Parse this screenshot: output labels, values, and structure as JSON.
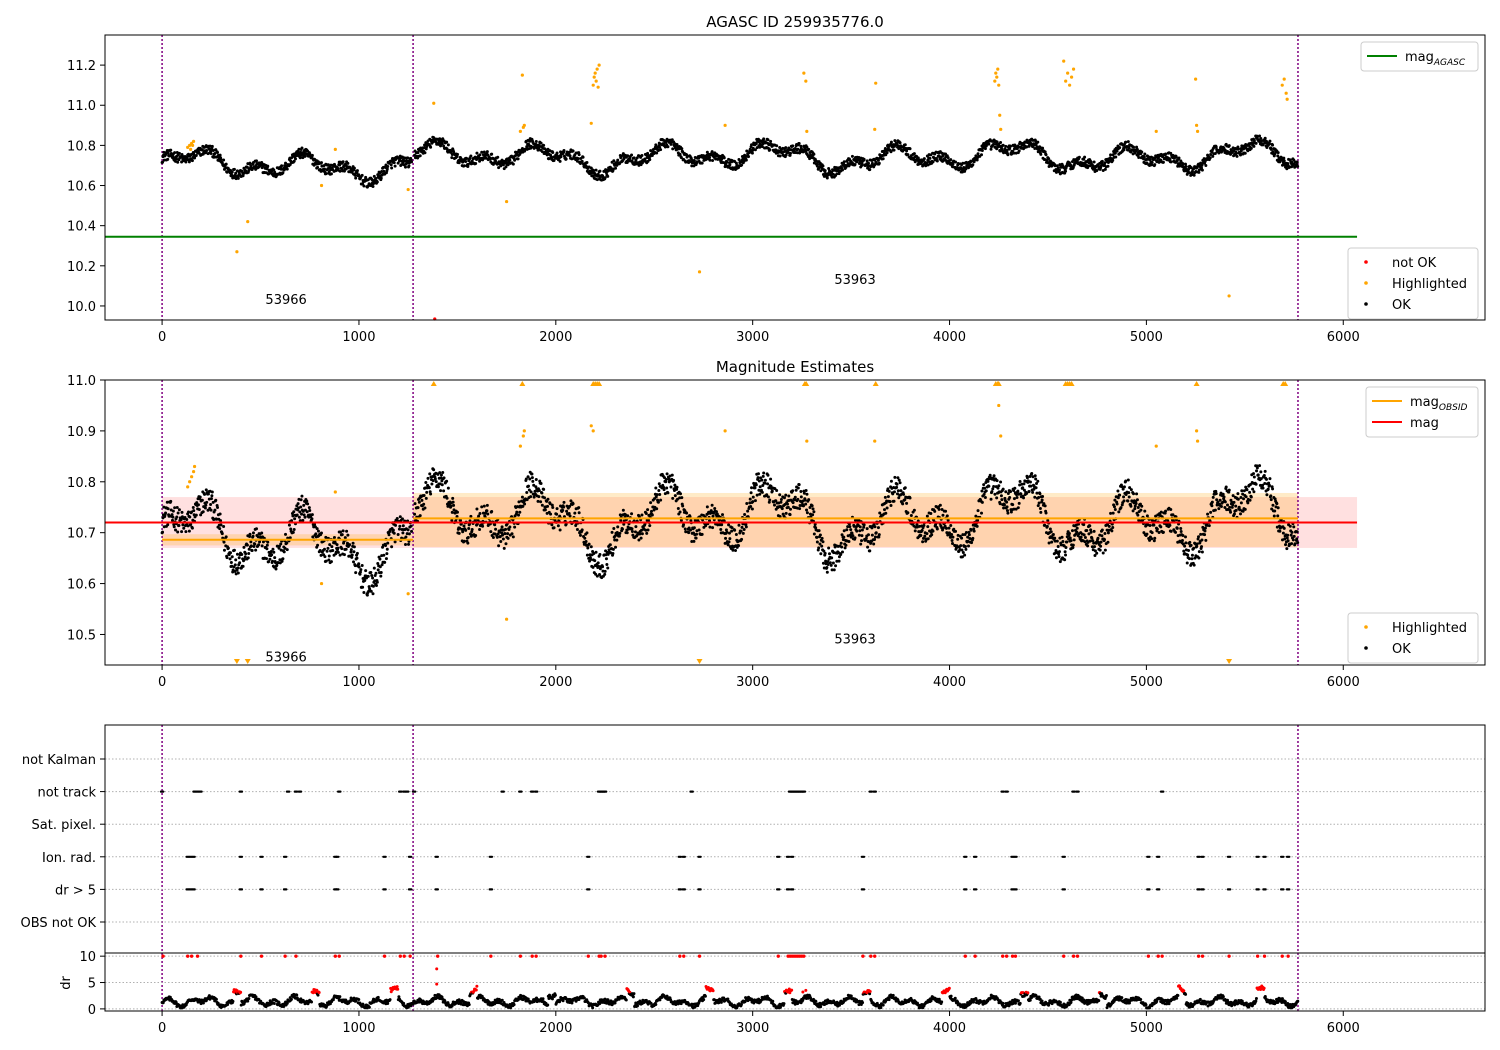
{
  "figure": {
    "title": "AGASC ID 259935776.0"
  },
  "chart_data": [
    {
      "type": "scatter",
      "panel": "top",
      "title": "AGASC ID 259935776.0",
      "xlim": [
        -290,
        6720
      ],
      "ylim": [
        9.93,
        11.35
      ],
      "xticks": [
        0,
        1000,
        2000,
        3000,
        4000,
        5000,
        6000
      ],
      "yticks": [
        10.0,
        10.2,
        10.4,
        10.6,
        10.8,
        11.0,
        11.2
      ],
      "obsid_boundaries": [
        0,
        1275,
        5770
      ],
      "obsid_labels": [
        {
          "text": "53966",
          "x": 630,
          "y": 10.0
        },
        {
          "text": "53963",
          "x": 3520,
          "y": 10.1
        }
      ],
      "mag_agasc": {
        "value": 10.345,
        "x_range": [
          0,
          6070
        ]
      },
      "legend_upper": {
        "position": "upper right",
        "entries": [
          {
            "label": "mag",
            "sub": "AGASC",
            "color": "#008000"
          }
        ]
      },
      "legend_lower": {
        "position": "lower right",
        "entries": [
          {
            "label": "not OK",
            "color": "#ff0000"
          },
          {
            "label": "Highlighted",
            "color": "#ffa500"
          },
          {
            "label": "OK",
            "color": "#000000"
          }
        ]
      },
      "highlighted_points": [
        [
          130,
          10.79
        ],
        [
          140,
          10.8
        ],
        [
          150,
          10.81
        ],
        [
          160,
          10.82
        ],
        [
          145,
          10.78
        ],
        [
          155,
          10.8
        ],
        [
          380,
          10.27
        ],
        [
          435,
          10.42
        ],
        [
          810,
          10.6
        ],
        [
          880,
          10.78
        ],
        [
          1250,
          10.58
        ],
        [
          1380,
          11.01
        ],
        [
          1750,
          10.52
        ],
        [
          1820,
          10.87
        ],
        [
          1830,
          11.15
        ],
        [
          1835,
          10.89
        ],
        [
          1840,
          10.9
        ],
        [
          2180,
          10.91
        ],
        [
          2190,
          11.1
        ],
        [
          2195,
          11.14
        ],
        [
          2200,
          11.16
        ],
        [
          2205,
          11.12
        ],
        [
          2210,
          11.18
        ],
        [
          2215,
          11.09
        ],
        [
          2220,
          11.2
        ],
        [
          2730,
          10.17
        ],
        [
          2860,
          10.9
        ],
        [
          3260,
          11.16
        ],
        [
          3270,
          11.12
        ],
        [
          3275,
          10.87
        ],
        [
          3620,
          10.88
        ],
        [
          3625,
          11.11
        ],
        [
          4230,
          11.12
        ],
        [
          4235,
          11.16
        ],
        [
          4240,
          11.14
        ],
        [
          4245,
          11.18
        ],
        [
          4250,
          11.1
        ],
        [
          4255,
          10.95
        ],
        [
          4260,
          10.88
        ],
        [
          4580,
          11.22
        ],
        [
          4590,
          11.12
        ],
        [
          4600,
          11.16
        ],
        [
          4610,
          11.1
        ],
        [
          4620,
          11.14
        ],
        [
          4630,
          11.18
        ],
        [
          5050,
          10.87
        ],
        [
          5250,
          11.13
        ],
        [
          5255,
          10.9
        ],
        [
          5260,
          10.87
        ],
        [
          5420,
          10.05
        ],
        [
          5690,
          11.1
        ],
        [
          5700,
          11.13
        ],
        [
          5710,
          11.06
        ],
        [
          5715,
          11.03
        ]
      ],
      "not_ok_points": [
        [
          1385,
          9.92
        ]
      ]
    },
    {
      "type": "scatter",
      "panel": "middle",
      "title": "Magnitude Estimates",
      "xlim": [
        -290,
        6720
      ],
      "ylim": [
        10.44,
        11.0
      ],
      "xticks": [
        0,
        1000,
        2000,
        3000,
        4000,
        5000,
        6000
      ],
      "yticks": [
        10.5,
        10.6,
        10.7,
        10.8,
        10.9,
        11.0
      ],
      "obsid_boundaries": [
        0,
        1275,
        5770
      ],
      "obsid_labels": [
        {
          "text": "53966",
          "x": 630,
          "y": 10.455
        },
        {
          "text": "53963",
          "x": 3520,
          "y": 10.49
        }
      ],
      "mag": {
        "value": 10.72,
        "band": [
          10.67,
          10.77
        ],
        "x_range": [
          0,
          6070
        ]
      },
      "mag_obsid": [
        {
          "obsid": "53966",
          "value": 10.686,
          "band": [
            10.675,
            10.697
          ],
          "x_range": [
            0,
            1275
          ]
        },
        {
          "obsid": "53963",
          "value": 10.728,
          "band": [
            10.672,
            10.778
          ],
          "x_range": [
            1275,
            5770
          ]
        }
      ],
      "legend_upper": {
        "position": "upper right",
        "entries": [
          {
            "label": "mag",
            "sub": "OBSID",
            "color": "#ffa500"
          },
          {
            "label": "mag",
            "sub": "",
            "color": "#ff0000"
          }
        ]
      },
      "legend_lower": {
        "position": "lower right",
        "entries": [
          {
            "label": "Highlighted",
            "color": "#ffa500"
          },
          {
            "label": "OK",
            "color": "#000000"
          }
        ]
      },
      "highlighted_points": [
        [
          130,
          10.79
        ],
        [
          140,
          10.8
        ],
        [
          150,
          10.81
        ],
        [
          160,
          10.82
        ],
        [
          165,
          10.83
        ],
        [
          810,
          10.6
        ],
        [
          880,
          10.78
        ],
        [
          1250,
          10.58
        ],
        [
          1750,
          10.53
        ],
        [
          1820,
          10.87
        ],
        [
          1835,
          10.89
        ],
        [
          1840,
          10.9
        ],
        [
          2180,
          10.91
        ],
        [
          2190,
          10.9
        ],
        [
          2860,
          10.9
        ],
        [
          3275,
          10.88
        ],
        [
          3620,
          10.88
        ],
        [
          4250,
          10.95
        ],
        [
          4260,
          10.89
        ],
        [
          5050,
          10.87
        ],
        [
          5255,
          10.9
        ],
        [
          5260,
          10.88
        ]
      ],
      "clipped_high": [
        1380,
        1830,
        2190,
        2200,
        2210,
        2220,
        3265,
        3272,
        3625,
        4235,
        4245,
        4250,
        4590,
        4600,
        4610,
        4620,
        5255,
        5695,
        5705
      ],
      "clipped_low": [
        380,
        435,
        2730,
        5420
      ]
    },
    {
      "type": "scatter",
      "panel": "flags",
      "xlim": [
        -290,
        6720
      ],
      "obsid_boundaries": [
        0,
        1275,
        5770
      ],
      "categories": [
        "not Kalman",
        "not track",
        "Sat. pixel.",
        "Ion. rad.",
        "dr > 5",
        "OBS not OK"
      ],
      "flags": {
        "not track": [
          0,
          165,
          180,
          195,
          400,
          640,
          680,
          700,
          900,
          1210,
          1230,
          1245,
          1280,
          1730,
          1820,
          1880,
          1900,
          2220,
          2230,
          2240,
          2250,
          2690,
          3190,
          3200,
          3210,
          3220,
          3230,
          3240,
          3250,
          3260,
          3600,
          3620,
          4270,
          4290,
          4630,
          4650,
          5080
        ],
        "Ion. rad.": [
          130,
          145,
          160,
          400,
          505,
          625,
          880,
          890,
          1130,
          1260,
          1395,
          1670,
          2165,
          2630,
          2650,
          2730,
          3130,
          3180,
          3200,
          3560,
          4080,
          4130,
          4320,
          4335,
          4580,
          5010,
          5060,
          5265,
          5285,
          5420,
          5565,
          5600,
          5690,
          5720
        ],
        "dr > 5": [
          130,
          145,
          160,
          400,
          505,
          625,
          880,
          890,
          1130,
          1260,
          1395,
          1670,
          2165,
          2630,
          2650,
          2730,
          3130,
          3180,
          3200,
          3560,
          4080,
          4130,
          4320,
          4335,
          4580,
          5010,
          5060,
          5265,
          5285,
          5420,
          5565,
          5600,
          5690,
          5720
        ]
      }
    },
    {
      "type": "scatter",
      "panel": "dr",
      "ylabel": "dr",
      "xlim": [
        -290,
        6720
      ],
      "ylim": [
        -0.4,
        10.6
      ],
      "xticks": [
        0,
        1000,
        2000,
        3000,
        4000,
        5000,
        6000
      ],
      "yticks": [
        0,
        5,
        10
      ],
      "obsid_boundaries": [
        0,
        1275,
        5770
      ],
      "saturated_red": [
        5,
        130,
        150,
        180,
        400,
        505,
        625,
        680,
        880,
        900,
        1130,
        1210,
        1230,
        1260,
        1400,
        1670,
        1820,
        1880,
        1900,
        2165,
        2220,
        2230,
        2250,
        2630,
        2650,
        2730,
        3130,
        3180,
        3190,
        3200,
        3210,
        3220,
        3230,
        3240,
        3250,
        3260,
        3560,
        3600,
        3620,
        4080,
        4130,
        4270,
        4290,
        4320,
        4335,
        4580,
        4630,
        4650,
        5010,
        5060,
        5080,
        5265,
        5285,
        5420,
        5565,
        5600,
        5690,
        5720
      ],
      "red_points": [
        [
          1395,
          7.6
        ],
        [
          1395,
          4.7
        ],
        [
          3255,
          3.2
        ],
        [
          3270,
          3.5
        ]
      ]
    }
  ]
}
